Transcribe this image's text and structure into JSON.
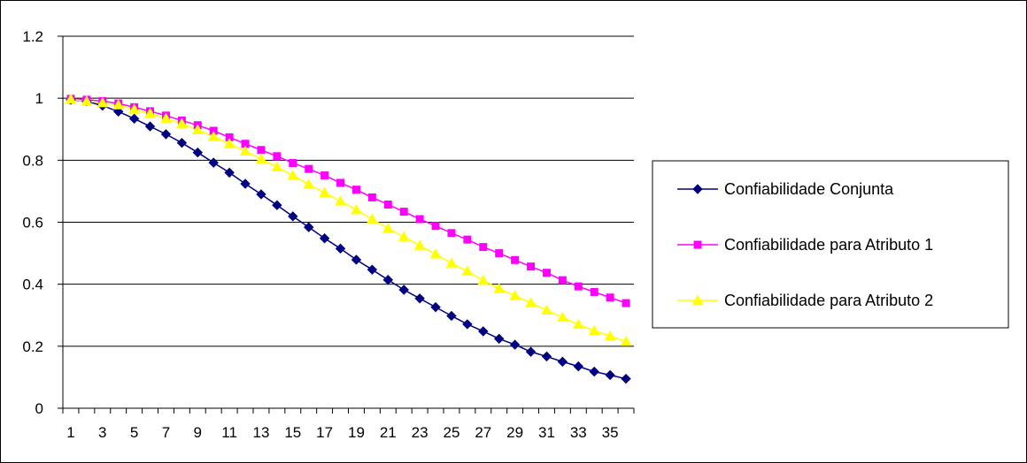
{
  "chart_data": {
    "type": "line",
    "title": "",
    "xlabel": "",
    "ylabel": "",
    "ylim": [
      0,
      1.2
    ],
    "yticks": [
      0,
      0.2,
      0.4,
      0.6,
      0.8,
      1,
      1.2
    ],
    "ytick_labels": [
      "0",
      "0.2",
      "0.4",
      "0.6",
      "0.8",
      "1",
      "1.2"
    ],
    "x": [
      1,
      2,
      3,
      4,
      5,
      6,
      7,
      8,
      9,
      10,
      11,
      12,
      13,
      14,
      15,
      16,
      17,
      18,
      19,
      20,
      21,
      22,
      23,
      24,
      25,
      26,
      27,
      28,
      29,
      30,
      31,
      32,
      33,
      34,
      35,
      36
    ],
    "xtick_labels": [
      "1",
      "3",
      "5",
      "7",
      "9",
      "11",
      "13",
      "15",
      "17",
      "19",
      "21",
      "23",
      "25",
      "27",
      "29",
      "31",
      "33",
      "35"
    ],
    "grid": "horizontal",
    "legend_position": "right",
    "series": [
      {
        "name": "Confiabilidade Conjunta",
        "color": "#000080",
        "marker": "diamond",
        "values": [
          0.995,
          0.99,
          0.976,
          0.957,
          0.934,
          0.909,
          0.884,
          0.856,
          0.825,
          0.792,
          0.76,
          0.724,
          0.69,
          0.655,
          0.619,
          0.584,
          0.548,
          0.515,
          0.479,
          0.447,
          0.414,
          0.382,
          0.354,
          0.326,
          0.298,
          0.271,
          0.248,
          0.224,
          0.205,
          0.182,
          0.167,
          0.15,
          0.135,
          0.118,
          0.107,
          0.095
        ]
      },
      {
        "name": "Confiabilidade para Atributo 1",
        "color": "#FF00FF",
        "marker": "square",
        "values": [
          0.998,
          0.995,
          0.991,
          0.983,
          0.971,
          0.958,
          0.944,
          0.928,
          0.913,
          0.895,
          0.874,
          0.853,
          0.833,
          0.813,
          0.791,
          0.772,
          0.751,
          0.727,
          0.705,
          0.68,
          0.657,
          0.634,
          0.61,
          0.588,
          0.565,
          0.544,
          0.52,
          0.5,
          0.478,
          0.457,
          0.437,
          0.413,
          0.393,
          0.375,
          0.357,
          0.339
        ]
      },
      {
        "name": "Confiabilidade para Atributo 2",
        "color": "#FFFF00",
        "marker": "triangle",
        "values": [
          0.997,
          0.99,
          0.985,
          0.978,
          0.964,
          0.951,
          0.935,
          0.918,
          0.898,
          0.876,
          0.853,
          0.829,
          0.804,
          0.778,
          0.751,
          0.722,
          0.695,
          0.668,
          0.64,
          0.61,
          0.58,
          0.553,
          0.525,
          0.497,
          0.468,
          0.442,
          0.412,
          0.386,
          0.363,
          0.34,
          0.316,
          0.293,
          0.27,
          0.25,
          0.233,
          0.215
        ]
      }
    ]
  }
}
